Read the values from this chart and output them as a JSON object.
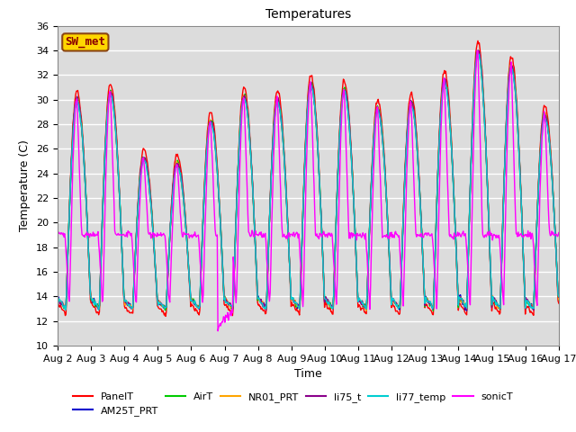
{
  "title": "Temperatures",
  "xlabel": "Time",
  "ylabel": "Temperature (C)",
  "ylim": [
    10,
    36
  ],
  "yticks": [
    10,
    12,
    14,
    16,
    18,
    20,
    22,
    24,
    26,
    28,
    30,
    32,
    34,
    36
  ],
  "annotation_text": "SW_met",
  "annotation_box_color": "#FFD700",
  "annotation_text_color": "#8B0000",
  "annotation_edge_color": "#8B4513",
  "series_colors": {
    "PanelT": "#FF0000",
    "AM25T_PRT": "#0000CD",
    "AirT": "#00CC00",
    "NR01_PRT": "#FFA500",
    "li75_t": "#8B008B",
    "li77_temp": "#00CED1",
    "sonicT": "#FF00FF"
  },
  "bg_color": "#DCDCDC",
  "grid_color": "#FFFFFF",
  "day_peaks": [
    30.2,
    30.8,
    25.5,
    25.0,
    28.5,
    30.5,
    30.2,
    31.5,
    31.0,
    29.5,
    30.0,
    31.8,
    34.2,
    33.0,
    29.0
  ],
  "base_min": 13.0,
  "sonic_night_base": 19.0,
  "num_days": 15,
  "pts_per_day": 48,
  "title_fontsize": 10,
  "tick_fontsize": 8,
  "label_fontsize": 9,
  "legend_fontsize": 8,
  "line_width": 1.0
}
